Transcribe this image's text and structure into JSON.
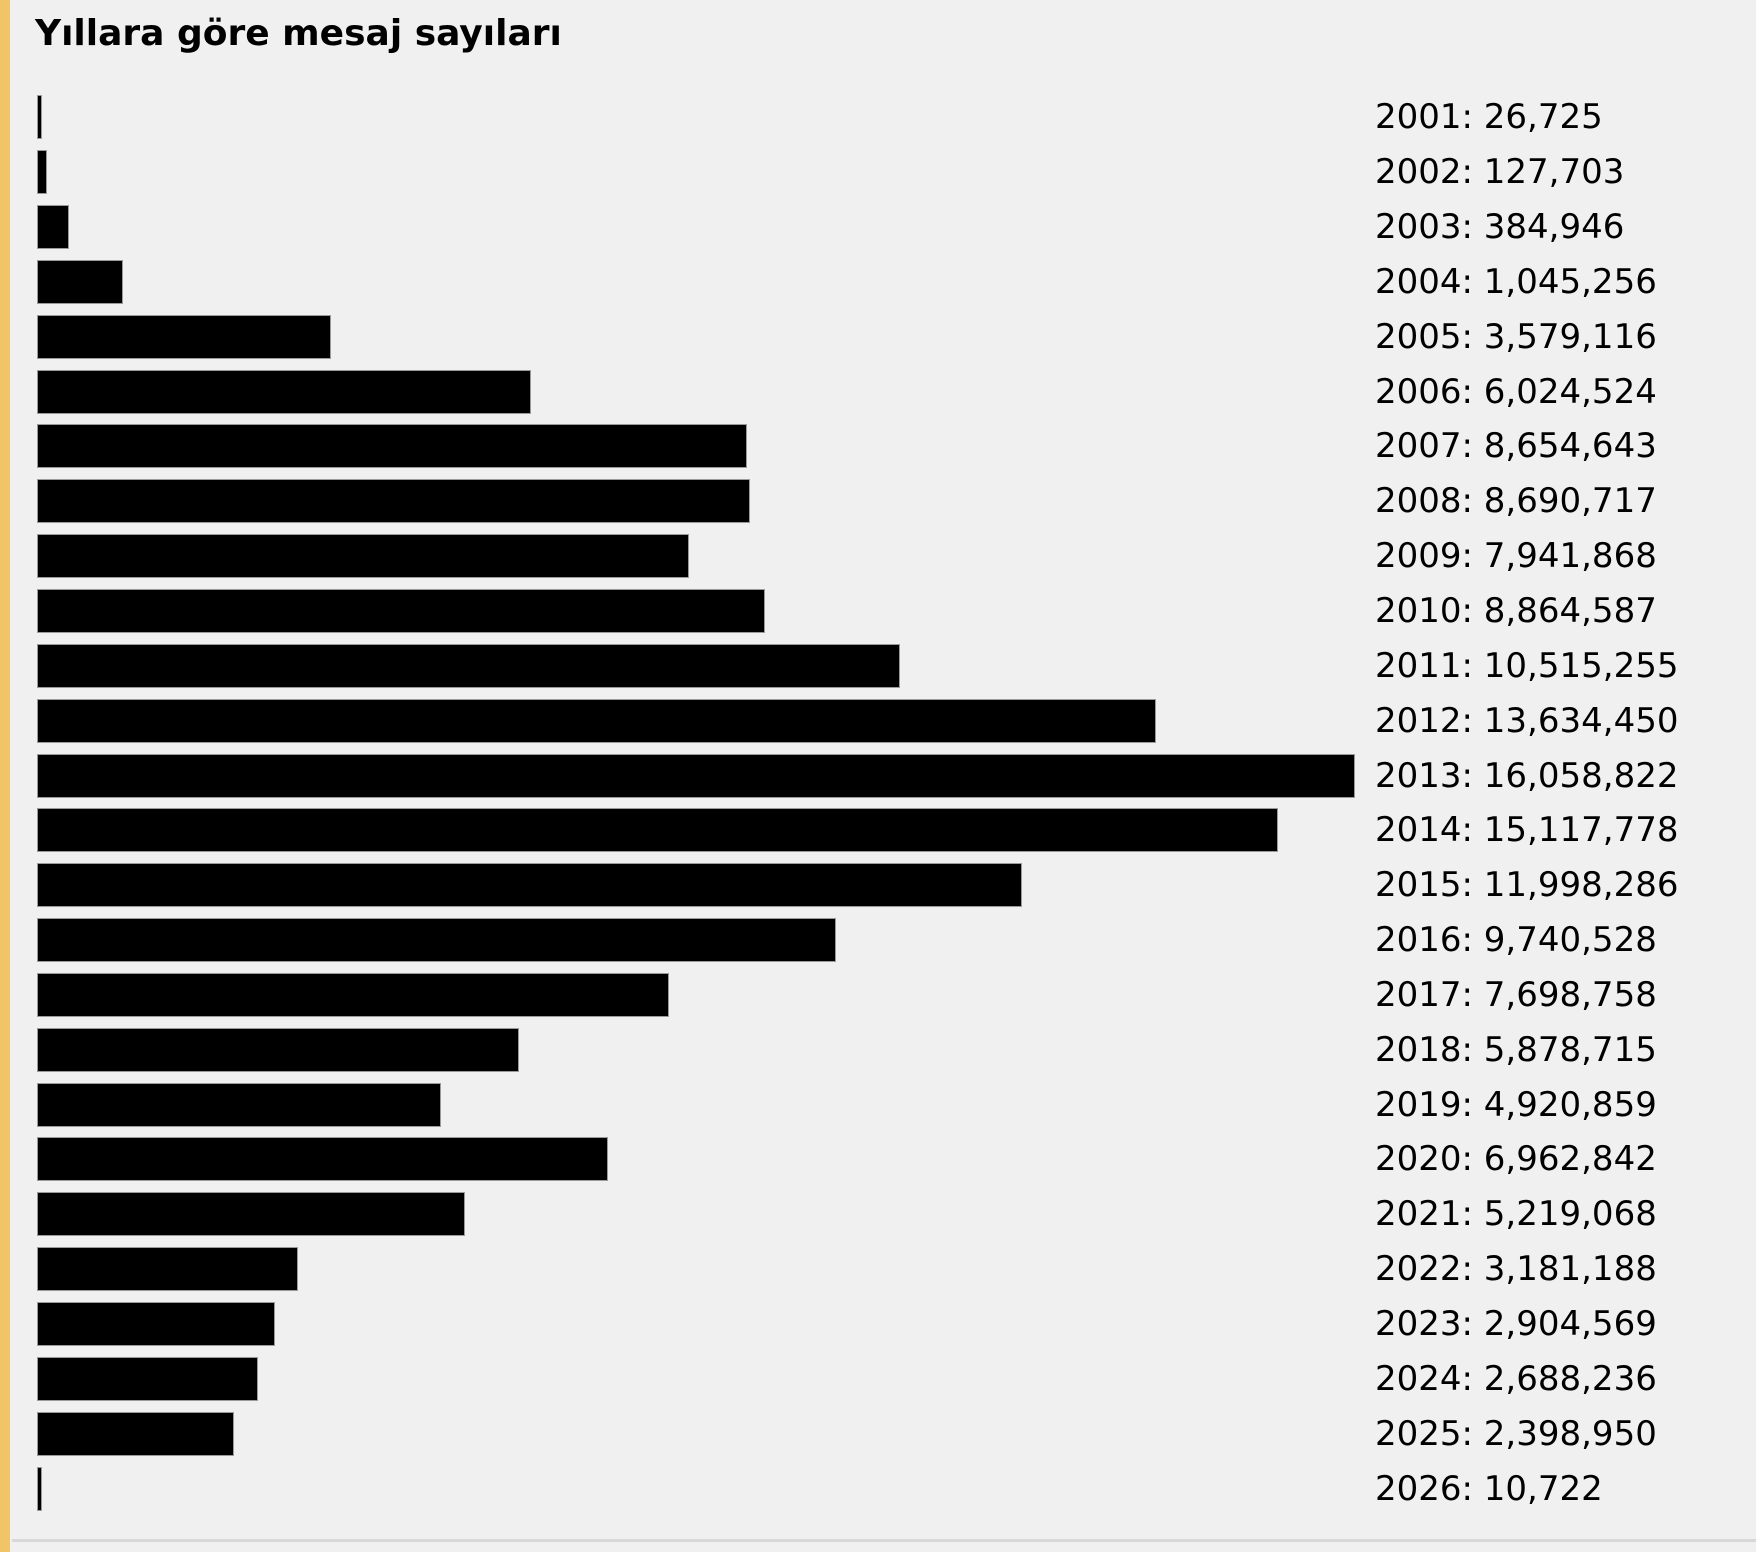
{
  "title": "Yıllara göre mesaj sayıları",
  "colors": {
    "background": "#f0f0f0",
    "accent_stripe": "#f1c468",
    "bar_fill": "#000000",
    "bar_border": "#9a9a9a",
    "divider": "#d8d8d8",
    "text": "#000000"
  },
  "chart_data": {
    "type": "bar",
    "orientation": "horizontal",
    "title": "Yıllara göre mesaj sayıları",
    "xlabel": "",
    "ylabel": "",
    "xlim": [
      0,
      16058822
    ],
    "grid": false,
    "legend": false,
    "categories": [
      "2001",
      "2002",
      "2003",
      "2004",
      "2005",
      "2006",
      "2007",
      "2008",
      "2009",
      "2010",
      "2011",
      "2012",
      "2013",
      "2014",
      "2015",
      "2016",
      "2017",
      "2018",
      "2019",
      "2020",
      "2021",
      "2022",
      "2023",
      "2024",
      "2025",
      "2026"
    ],
    "values": [
      26725,
      127703,
      384946,
      1045256,
      3579116,
      6024524,
      8654643,
      8690717,
      7941868,
      8864587,
      10515255,
      13634450,
      16058822,
      15117778,
      11998286,
      9740528,
      7698758,
      5878715,
      4920859,
      6962842,
      5219068,
      3181188,
      2904569,
      2688236,
      2398950,
      10722
    ],
    "value_labels": [
      "2001: 26,725",
      "2002: 127,703",
      "2003: 384,946",
      "2004: 1,045,256",
      "2005: 3,579,116",
      "2006: 6,024,524",
      "2007: 8,654,643",
      "2008: 8,690,717",
      "2009: 7,941,868",
      "2010: 8,864,587",
      "2011: 10,515,255",
      "2012: 13,634,450",
      "2013: 16,058,822",
      "2014: 15,117,778",
      "2015: 11,998,286",
      "2016: 9,740,528",
      "2017: 7,698,758",
      "2018: 5,878,715",
      "2019: 4,920,859",
      "2020: 6,962,842",
      "2021: 5,219,068",
      "2022: 3,181,188",
      "2023: 2,904,569",
      "2024: 2,688,236",
      "2025: 2,398,950",
      "2026: 10,722"
    ]
  }
}
